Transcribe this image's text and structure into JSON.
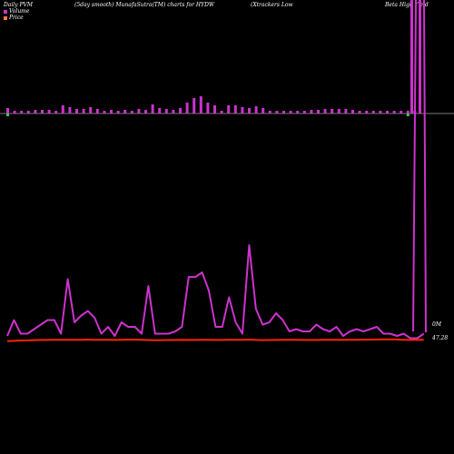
{
  "header": {
    "label_left": "Daily PVM",
    "label_mid": "(5day smooth) MunafaSutra(TM) charts for HYDW",
    "label_right_1": "(Xtrackers Low",
    "label_right_2": "Beta  High Yield"
  },
  "legend": {
    "volume_label": "Volume",
    "price_label": "Price",
    "volume_color": "#cc33cc",
    "price_color": "#ff4422"
  },
  "chart_data": {
    "type": "bar",
    "title": "",
    "volume": {
      "bars": [
        6,
        3,
        3,
        3,
        4,
        4,
        4,
        3,
        9,
        7,
        5,
        5,
        7,
        5,
        3,
        4,
        3,
        4,
        3,
        5,
        4,
        10,
        6,
        5,
        4,
        6,
        12,
        17,
        19,
        12,
        9,
        3,
        9,
        9,
        7,
        6,
        8,
        6,
        3,
        3,
        3,
        3,
        3,
        3,
        4,
        4,
        5,
        5,
        5,
        5,
        4,
        3,
        3,
        3,
        3,
        3,
        3,
        3,
        3,
        3,
        130,
        130,
        130
      ],
      "bars_negative": [
        1,
        0,
        0,
        0,
        0,
        0,
        0,
        0,
        0,
        0,
        0,
        0,
        0,
        0,
        0,
        0,
        0,
        0,
        0,
        0,
        0,
        0,
        0,
        0,
        0,
        0,
        0,
        0,
        0,
        0,
        0,
        0,
        0,
        0,
        0,
        0,
        0,
        0,
        0,
        0,
        0,
        0,
        0,
        0,
        0,
        0,
        0,
        0,
        0,
        0,
        0,
        0,
        0,
        0,
        0,
        0,
        0,
        0,
        2,
        0,
        0,
        0,
        0
      ],
      "bar_colors": [
        "#cc33cc",
        "#44cc44"
      ]
    },
    "pvm_line": [
      2,
      9,
      3,
      3,
      5,
      7,
      9,
      9,
      3,
      27,
      8,
      11,
      13,
      10,
      3,
      6,
      2,
      8,
      6,
      6,
      3,
      24,
      3,
      3,
      3,
      4,
      6,
      28,
      28,
      30,
      22,
      6,
      6,
      19,
      8,
      3,
      42,
      14,
      7,
      8,
      12,
      9,
      4,
      5,
      4,
      4,
      7,
      5,
      4,
      6,
      2,
      4,
      5,
      4,
      5,
      6,
      3,
      3,
      2,
      3,
      1,
      1,
      3
    ],
    "price_line": [
      2,
      2.2,
      2.5,
      2.6,
      2.8,
      3.0,
      3.0,
      3.1,
      3.1,
      3.2,
      3.2,
      3.2,
      3.3,
      3.2,
      3.1,
      3.1,
      3.0,
      3.2,
      3.3,
      3.3,
      3.1,
      2.9,
      2.7,
      2.8,
      2.9,
      3.0,
      3.1,
      3.0,
      3.0,
      3.1,
      3.2,
      3.0,
      3.0,
      3.1,
      3.2,
      3.2,
      3.3,
      3.0,
      2.8,
      2.9,
      3.0,
      3.1,
      3.1,
      3.1,
      3.0,
      3.0,
      3.0,
      3.1,
      3.1,
      3.1,
      3.2,
      3.1,
      3.2,
      3.3,
      3.3,
      3.4,
      3.6,
      3.6,
      3.4,
      3.1,
      3.0,
      3.1,
      3.1
    ],
    "spike_right": [
      500,
      500
    ],
    "y_labels": {
      "volume_zero": "0M",
      "price_level": "47.28"
    }
  }
}
